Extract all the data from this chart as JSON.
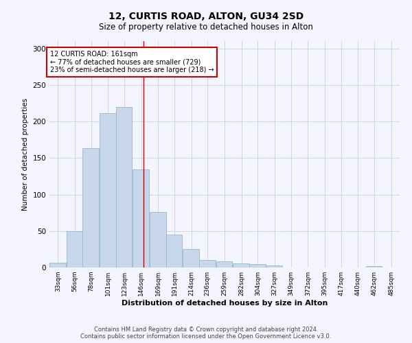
{
  "title": "12, CURTIS ROAD, ALTON, GU34 2SD",
  "subtitle": "Size of property relative to detached houses in Alton",
  "xlabel": "Distribution of detached houses by size in Alton",
  "ylabel": "Number of detached properties",
  "bar_color": "#c8d8ea",
  "bar_edge_color": "#92b8d4",
  "background_color": "#f5f5ff",
  "grid_color": "#d0d8e8",
  "annotation_line_color": "#cc0000",
  "annotation_box_color": "#cc0000",
  "annotation_text": "12 CURTIS ROAD: 161sqm\n← 77% of detached houses are smaller (729)\n23% of semi-detached houses are larger (218) →",
  "property_size": 161,
  "categories": [
    "33sqm",
    "56sqm",
    "78sqm",
    "101sqm",
    "123sqm",
    "146sqm",
    "169sqm",
    "191sqm",
    "214sqm",
    "236sqm",
    "259sqm",
    "282sqm",
    "304sqm",
    "327sqm",
    "349sqm",
    "372sqm",
    "395sqm",
    "417sqm",
    "440sqm",
    "462sqm",
    "485sqm"
  ],
  "bin_edges": [
    33,
    56,
    78,
    101,
    123,
    146,
    169,
    191,
    214,
    236,
    259,
    282,
    304,
    327,
    349,
    372,
    395,
    417,
    440,
    462,
    485
  ],
  "values": [
    7,
    50,
    163,
    211,
    220,
    134,
    76,
    45,
    25,
    10,
    8,
    6,
    5,
    3,
    0,
    0,
    0,
    0,
    0,
    2
  ],
  "ylim": [
    0,
    310
  ],
  "yticks": [
    0,
    50,
    100,
    150,
    200,
    250,
    300
  ],
  "footer1": "Contains HM Land Registry data © Crown copyright and database right 2024.",
  "footer2": "Contains public sector information licensed under the Open Government Licence v3.0."
}
